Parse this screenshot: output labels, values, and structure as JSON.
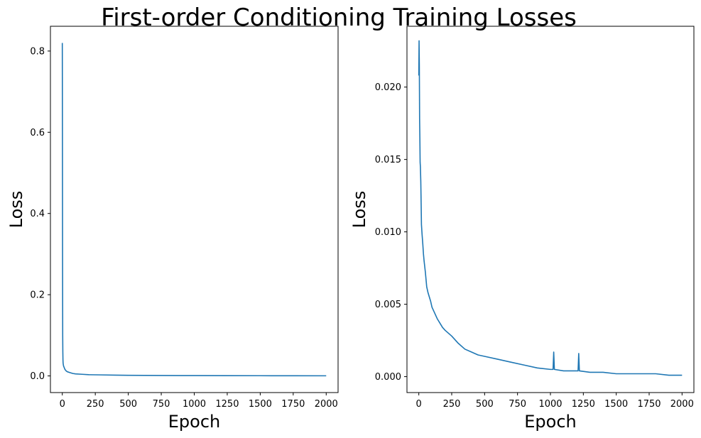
{
  "figure": {
    "title": "First-order Conditioning Training Losses",
    "colors": {
      "line": "#1f77b4",
      "axes": "#000000",
      "background": "#ffffff"
    }
  },
  "chart_data": [
    {
      "type": "line",
      "xlabel": "Epoch",
      "ylabel": "Loss",
      "xlim": [
        -90,
        2090
      ],
      "ylim": [
        -0.041,
        0.861
      ],
      "xticks": [
        0,
        250,
        500,
        750,
        1000,
        1250,
        1500,
        1750,
        2000
      ],
      "xtick_labels": [
        "0",
        "250",
        "500",
        "750",
        "1000",
        "1250",
        "1500",
        "1750",
        "2000"
      ],
      "yticks": [
        0.0,
        0.2,
        0.4,
        0.6,
        0.8
      ],
      "ytick_labels": [
        "0.0",
        "0.2",
        "0.4",
        "0.6",
        "0.8"
      ],
      "grid": false,
      "series": [
        {
          "x": [
            0,
            1,
            2,
            3,
            4,
            5,
            6,
            8,
            10,
            15,
            20,
            30,
            40,
            60,
            80,
            100,
            150,
            200,
            300,
            400,
            500,
            750,
            1000,
            1250,
            1500,
            1750,
            2000
          ],
          "y": [
            0.82,
            0.6,
            0.3,
            0.1,
            0.06,
            0.04,
            0.032,
            0.027,
            0.024,
            0.02,
            0.016,
            0.012,
            0.01,
            0.008,
            0.006,
            0.005,
            0.004,
            0.003,
            0.0025,
            0.002,
            0.0015,
            0.001,
            0.0008,
            0.0006,
            0.0005,
            0.0004,
            0.0003
          ]
        }
      ]
    },
    {
      "type": "line",
      "xlabel": "Epoch",
      "ylabel": "Loss",
      "xlim": [
        -90,
        2090
      ],
      "ylim": [
        -0.0011,
        0.0242
      ],
      "xticks": [
        0,
        250,
        500,
        750,
        1000,
        1250,
        1500,
        1750,
        2000
      ],
      "xtick_labels": [
        "0",
        "250",
        "500",
        "750",
        "1000",
        "1250",
        "1500",
        "1750",
        "2000"
      ],
      "yticks": [
        0.0,
        0.005,
        0.01,
        0.015,
        0.02
      ],
      "ytick_labels": [
        "0.000",
        "0.005",
        "0.010",
        "0.015",
        "0.020"
      ],
      "grid": false,
      "series": [
        {
          "x": [
            0,
            2,
            4,
            6,
            8,
            10,
            12,
            15,
            18,
            20,
            25,
            30,
            35,
            40,
            45,
            50,
            60,
            70,
            80,
            90,
            100,
            120,
            140,
            160,
            180,
            200,
            250,
            300,
            350,
            400,
            450,
            500,
            600,
            700,
            800,
            900,
            1000,
            1020,
            1025,
            1030,
            1100,
            1200,
            1210,
            1215,
            1220,
            1300,
            1400,
            1500,
            1600,
            1700,
            1800,
            1900,
            2000
          ],
          "y": [
            0.0208,
            0.0232,
            0.0215,
            0.0178,
            0.0165,
            0.0148,
            0.0145,
            0.0135,
            0.0118,
            0.0105,
            0.0098,
            0.0092,
            0.0085,
            0.008,
            0.0076,
            0.0072,
            0.0062,
            0.0058,
            0.0055,
            0.0052,
            0.0048,
            0.0044,
            0.004,
            0.0037,
            0.0034,
            0.0032,
            0.0028,
            0.0023,
            0.0019,
            0.0017,
            0.0015,
            0.0014,
            0.0012,
            0.001,
            0.0008,
            0.0006,
            0.0005,
            0.0005,
            0.0017,
            0.0005,
            0.0004,
            0.0004,
            0.0004,
            0.0016,
            0.0004,
            0.0003,
            0.0003,
            0.0002,
            0.0002,
            0.0002,
            0.0002,
            0.0001,
            0.0001
          ]
        }
      ]
    }
  ]
}
